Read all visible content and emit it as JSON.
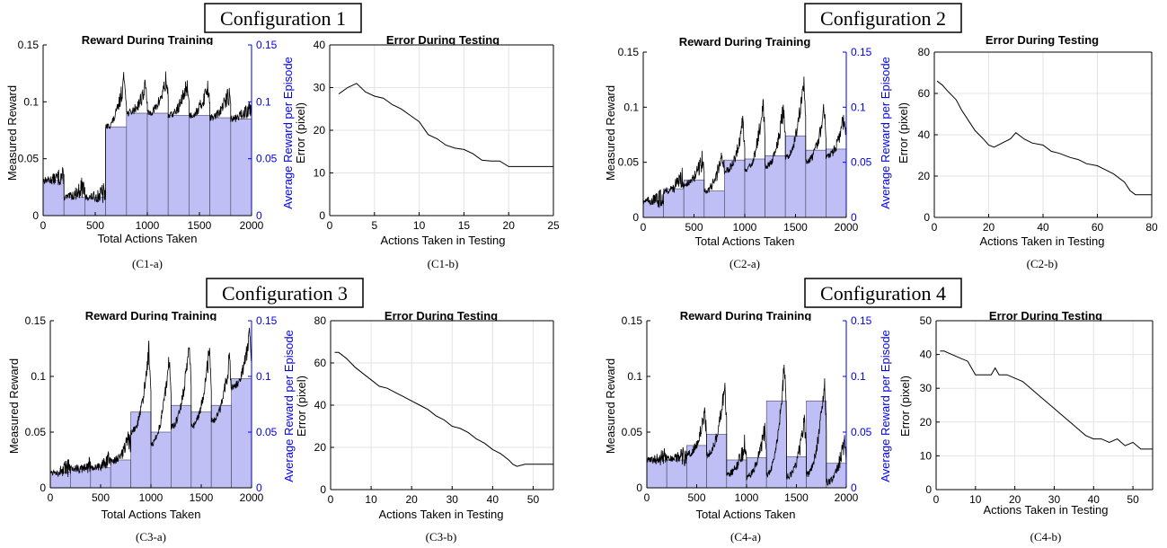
{
  "figure": {
    "configs": [
      {
        "header": "Configuration 1",
        "training": {
          "title": "Reward During Training",
          "xlabel": "Total Actions Taken",
          "ylabel": "Measured Reward",
          "y2label": "Average Reward per Episode",
          "caption": "(C1-a)"
        },
        "testing": {
          "title": "Error During Testing",
          "xlabel": "Actions Taken in Testing",
          "ylabel": "Error (pixel)",
          "caption": "(C1-b)"
        }
      },
      {
        "header": "Configuration 2",
        "training": {
          "title": "Reward During Training",
          "xlabel": "Total Actions Taken",
          "ylabel": "Measured Reward",
          "y2label": "Average Reward per Episode",
          "caption": "(C2-a)"
        },
        "testing": {
          "title": "Error During Testing",
          "xlabel": "Actions Taken in Testing",
          "ylabel": "Error (pixel)",
          "caption": "(C2-b)"
        }
      },
      {
        "header": "Configuration 3",
        "training": {
          "title": "Reward During Training",
          "xlabel": "Total Actions Taken",
          "ylabel": "Measured Reward",
          "y2label": "Average Reward per Episode",
          "caption": "(C3-a)"
        },
        "testing": {
          "title": "Error During Testing",
          "xlabel": "Actions Taken in Testing",
          "ylabel": "Error (pixel)",
          "caption": "(C3-b)"
        }
      },
      {
        "header": "Configuration 4",
        "training": {
          "title": "Reward During Training",
          "xlabel": "Total Actions Taken",
          "ylabel": "Measured Reward",
          "y2label": "Average Reward per Episode",
          "caption": "(C4-a)"
        },
        "testing": {
          "title": "Error During Testing",
          "xlabel": "Actions Taken in Testing",
          "ylabel": "Error (pixel)",
          "caption": "(C4-b)"
        }
      }
    ]
  },
  "colors": {
    "bar_fill": "#bfbff5",
    "bar_edge": "#555577",
    "secondary_axis": "#0000ee",
    "line": "#000000",
    "grid": "#e3e3e3"
  },
  "chart_data": [
    {
      "id": "C1-a",
      "type": "bar",
      "title": "Reward During Training",
      "xlabel": "Total Actions Taken",
      "ylabel": "Measured Reward",
      "y2label": "Average Reward per Episode",
      "xlim": [
        0,
        2000
      ],
      "ylim": [
        0,
        0.15
      ],
      "y2lim": [
        0,
        0.15
      ],
      "xticks": [
        0,
        500,
        1000,
        1500,
        2000
      ],
      "yticks": [
        0,
        0.05,
        0.1,
        0.15
      ],
      "y2ticks": [
        0,
        0.05,
        0.1,
        0.15
      ],
      "grid": false,
      "episode_edges": [
        0,
        200,
        400,
        600,
        800,
        1000,
        1200,
        1400,
        1600,
        1800,
        2000
      ],
      "series": [
        {
          "name": "Average Reward per Episode",
          "values": [
            0.031,
            0.016,
            0.016,
            0.078,
            0.09,
            0.09,
            0.088,
            0.088,
            0.086,
            0.085
          ]
        }
      ],
      "reward_trace": {
        "base": [
          0.031,
          0.016,
          0.016,
          0.078,
          0.09,
          0.09,
          0.088,
          0.088,
          0.086,
          0.085
        ],
        "peaks": [
          0.036,
          0.028,
          0.02,
          0.132,
          0.118,
          0.126,
          0.122,
          0.12,
          0.113,
          0.1
        ]
      }
    },
    {
      "id": "C1-b",
      "type": "line",
      "title": "Error During Testing",
      "xlabel": "Actions Taken in Testing",
      "ylabel": "Error (pixel)",
      "xlim": [
        0,
        25
      ],
      "ylim": [
        0,
        40
      ],
      "xticks": [
        0,
        5,
        10,
        15,
        20,
        25
      ],
      "yticks": [
        0,
        10,
        20,
        30,
        40
      ],
      "grid": true,
      "x": [
        1,
        2,
        3,
        4,
        5,
        6,
        7,
        8,
        9,
        10,
        11,
        12,
        13,
        14,
        15,
        16,
        17,
        18,
        19,
        20,
        21,
        22,
        23,
        24,
        25
      ],
      "y": [
        28.5,
        30,
        31,
        29,
        28,
        27.5,
        26,
        25,
        23.5,
        22,
        19,
        18,
        16.5,
        15.8,
        15.5,
        14.5,
        13,
        12.8,
        12.8,
        11.5,
        11.5,
        11.5,
        11.5,
        11.5,
        11.5
      ]
    },
    {
      "id": "C2-a",
      "type": "bar",
      "title": "Reward During Training",
      "xlabel": "Total Actions Taken",
      "ylabel": "Measured Reward",
      "y2label": "Average Reward per Episode",
      "xlim": [
        0,
        2000
      ],
      "ylim": [
        0,
        0.15
      ],
      "y2lim": [
        0,
        0.15
      ],
      "xticks": [
        0,
        500,
        1000,
        1500,
        2000
      ],
      "yticks": [
        0,
        0.05,
        0.1,
        0.15
      ],
      "y2ticks": [
        0,
        0.05,
        0.1,
        0.15
      ],
      "grid": false,
      "episode_edges": [
        0,
        200,
        400,
        600,
        800,
        1000,
        1200,
        1400,
        1600,
        1800,
        2000
      ],
      "series": [
        {
          "name": "Average Reward per Episode",
          "values": [
            0.015,
            0.026,
            0.034,
            0.024,
            0.052,
            0.053,
            0.056,
            0.074,
            0.061,
            0.062
          ]
        }
      ],
      "reward_trace": {
        "base": [
          0.015,
          0.024,
          0.03,
          0.024,
          0.042,
          0.042,
          0.046,
          0.055,
          0.05,
          0.055
        ],
        "peaks": [
          0.018,
          0.04,
          0.058,
          0.066,
          0.096,
          0.118,
          0.112,
          0.14,
          0.11,
          0.1
        ]
      }
    },
    {
      "id": "C2-b",
      "type": "line",
      "title": "Error During Testing",
      "xlabel": "Actions Taken in Testing",
      "ylabel": "Error (pixel)",
      "xlim": [
        0,
        80
      ],
      "ylim": [
        0,
        80
      ],
      "xticks": [
        0,
        20,
        40,
        60,
        80
      ],
      "yticks": [
        0,
        20,
        40,
        60,
        80
      ],
      "grid": true,
      "x": [
        1,
        3,
        5,
        8,
        10,
        13,
        15,
        18,
        20,
        22,
        25,
        28,
        30,
        33,
        36,
        40,
        43,
        46,
        50,
        53,
        56,
        60,
        63,
        66,
        70,
        72,
        74,
        76,
        80
      ],
      "y": [
        66,
        64,
        61,
        57,
        52,
        46,
        42,
        38,
        35,
        34,
        36,
        38,
        41,
        38,
        36,
        35,
        32,
        31,
        29,
        28,
        26,
        25,
        23,
        21,
        17,
        13,
        11,
        11,
        11
      ]
    },
    {
      "id": "C3-a",
      "type": "bar",
      "title": "Reward During Training",
      "xlabel": "Total Actions Taken",
      "ylabel": "Measured Reward",
      "y2label": "Average Reward per Episode",
      "xlim": [
        0,
        2000
      ],
      "ylim": [
        0,
        0.15
      ],
      "y2lim": [
        0,
        0.15
      ],
      "xticks": [
        0,
        500,
        1000,
        1500,
        2000
      ],
      "yticks": [
        0,
        0.05,
        0.1,
        0.15
      ],
      "y2ticks": [
        0,
        0.05,
        0.1,
        0.15
      ],
      "grid": false,
      "episode_edges": [
        0,
        200,
        400,
        600,
        800,
        1000,
        1200,
        1400,
        1600,
        1800,
        2000
      ],
      "series": [
        {
          "name": "Average Reward per Episode",
          "values": [
            0.014,
            0.017,
            0.018,
            0.025,
            0.068,
            0.05,
            0.074,
            0.068,
            0.074,
            0.098
          ]
        }
      ],
      "reward_trace": {
        "base": [
          0.014,
          0.017,
          0.018,
          0.024,
          0.05,
          0.04,
          0.055,
          0.055,
          0.06,
          0.09
        ],
        "peaks": [
          0.018,
          0.022,
          0.025,
          0.048,
          0.143,
          0.138,
          0.146,
          0.14,
          0.13,
          0.147
        ]
      }
    },
    {
      "id": "C3-b",
      "type": "line",
      "title": "Error During Testing",
      "xlabel": "Actions Taken in Testing",
      "ylabel": "Error (pixel)",
      "xlim": [
        0,
        55
      ],
      "ylim": [
        0,
        80
      ],
      "xticks": [
        0,
        10,
        20,
        30,
        40,
        50
      ],
      "yticks": [
        0,
        20,
        40,
        60,
        80
      ],
      "grid": true,
      "x": [
        1,
        2,
        4,
        6,
        8,
        10,
        12,
        14,
        16,
        18,
        20,
        22,
        24,
        26,
        28,
        30,
        32,
        34,
        36,
        38,
        40,
        42,
        44,
        45,
        46,
        48,
        50,
        52,
        55
      ],
      "y": [
        65,
        65,
        62,
        58,
        55,
        52,
        49,
        48,
        46,
        44,
        42,
        40,
        38,
        35,
        33,
        30,
        29,
        27,
        24,
        22,
        19,
        17,
        14,
        12,
        11,
        12,
        12,
        12,
        12
      ]
    },
    {
      "id": "C4-a",
      "type": "bar",
      "title": "Reward During Training",
      "xlabel": "Total Actions Taken",
      "ylabel": "Measured Reward",
      "y2label": "Average Reward per Episode",
      "xlim": [
        0,
        2000
      ],
      "ylim": [
        0,
        0.15
      ],
      "y2lim": [
        0,
        0.15
      ],
      "xticks": [
        0,
        500,
        1000,
        1500,
        2000
      ],
      "yticks": [
        0,
        0.05,
        0.1,
        0.15
      ],
      "y2ticks": [
        0,
        0.05,
        0.1,
        0.15
      ],
      "grid": false,
      "episode_edges": [
        0,
        200,
        400,
        600,
        800,
        1000,
        1200,
        1400,
        1600,
        1800,
        2000
      ],
      "series": [
        {
          "name": "Average Reward per Episode",
          "values": [
            0.025,
            0.025,
            0.038,
            0.048,
            0.025,
            0.027,
            0.078,
            0.028,
            0.078,
            0.022
          ]
        }
      ],
      "reward_trace": {
        "base": [
          0.025,
          0.026,
          0.03,
          0.03,
          0.012,
          0.01,
          0.012,
          0.01,
          0.012,
          0.005
        ],
        "peaks": [
          0.028,
          0.03,
          0.075,
          0.104,
          0.045,
          0.065,
          0.138,
          0.072,
          0.115,
          0.05
        ]
      }
    },
    {
      "id": "C4-b",
      "type": "line",
      "title": "Error During Testing",
      "xlabel": "Actions Taken in Testing",
      "ylabel": "Error (pixel)",
      "xlim": [
        0,
        55
      ],
      "ylim": [
        0,
        50
      ],
      "xticks": [
        0,
        10,
        20,
        30,
        40,
        50
      ],
      "yticks": [
        0,
        10,
        20,
        30,
        40,
        50
      ],
      "grid": true,
      "x": [
        1,
        2,
        4,
        6,
        8,
        10,
        12,
        14,
        15,
        16,
        18,
        20,
        22,
        24,
        26,
        28,
        30,
        32,
        34,
        36,
        38,
        40,
        42,
        44,
        46,
        48,
        50,
        52,
        55
      ],
      "y": [
        41,
        41,
        40,
        39,
        38,
        34,
        34,
        34,
        36,
        34,
        34,
        33,
        32,
        30,
        28,
        26,
        24,
        22,
        20,
        18,
        16,
        15,
        15,
        14,
        15,
        13,
        14,
        12,
        12
      ]
    }
  ]
}
